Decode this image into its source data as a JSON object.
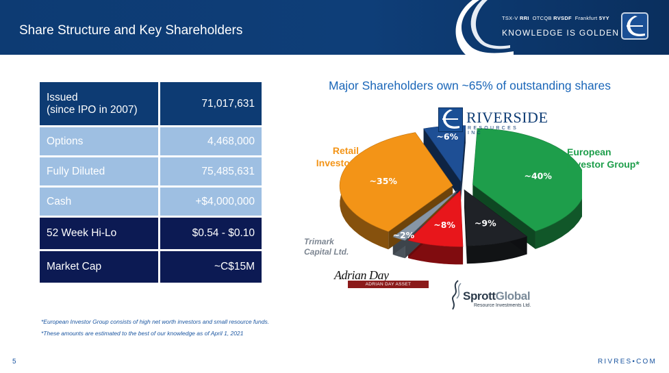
{
  "header": {
    "title": "Share Structure and Key Shareholders",
    "ticker_prefix": "TSX-V",
    "ticker_rri": "RRI",
    "ticker_otc": "OTCQB",
    "ticker_rvsdf": "RVSDF",
    "ticker_frankfurt": "Frankfurt",
    "ticker_5yy": "5YY",
    "tagline": "KNOWLEDGE IS GOLDEN"
  },
  "table": {
    "rows": [
      {
        "label_line1": "Issued",
        "label_line2": "(since IPO in 2007)",
        "value": "71,017,631"
      },
      {
        "label": "Options",
        "value": "4,468,000"
      },
      {
        "label": "Fully Diluted",
        "value": "75,485,631"
      },
      {
        "label": "Cash",
        "value": "+$4,000,000"
      },
      {
        "label": "52 Week Hi-Lo",
        "value": "$0.54 - $0.10"
      },
      {
        "label": "Market Cap",
        "value": "~C$15M"
      }
    ]
  },
  "chart_data": {
    "type": "pie",
    "title": "Major Shareholders own ~65% of outstanding shares",
    "slices": [
      {
        "name": "European Investor Group*",
        "value": 40,
        "label": "~40%",
        "color": "#1e9e4b"
      },
      {
        "name": "",
        "value": 9,
        "label": "~9%",
        "color": "#1f2227"
      },
      {
        "name": "",
        "value": 8,
        "label": "~8%",
        "color": "#e8161b"
      },
      {
        "name": "Trimark Capital Ltd.",
        "value": 2,
        "label": "~2%",
        "color": "#8796a6"
      },
      {
        "name": "Retail Investors",
        "value": 35,
        "label": "~35%",
        "color": "#f39417"
      },
      {
        "name": "",
        "value": 6,
        "label": "~6%",
        "color": "#1e4f95"
      }
    ]
  },
  "legend": {
    "retail_line1": "Retail",
    "retail_line2": "Investors",
    "euro_line1": "European",
    "euro_line2": "Investor Group*",
    "trimark_line1": "Trimark",
    "trimark_line2": "Capital Ltd."
  },
  "logos": {
    "riverside_name": "RIVERSIDE",
    "riverside_sub": "RESOURCES INC",
    "adrian_sig": "Adrian Day",
    "adrian_bar": "ADRIAN DAY ASSET MANAGEMENT",
    "sprott_name_1": "Sprott",
    "sprott_name_2": "Global",
    "sprott_sub": "Resource Investments Ltd."
  },
  "footnotes": [
    "*European Investor Group consists of high net worth investors and small resource funds.",
    "*These amounts are estimated to the best of our knowledge as of April 1, 2021"
  ],
  "footer": {
    "page_number": "5",
    "website": "RIVRES•COM"
  },
  "colors": {
    "brand_navy": "#0d3b73",
    "chart_title": "#1a66b8"
  }
}
